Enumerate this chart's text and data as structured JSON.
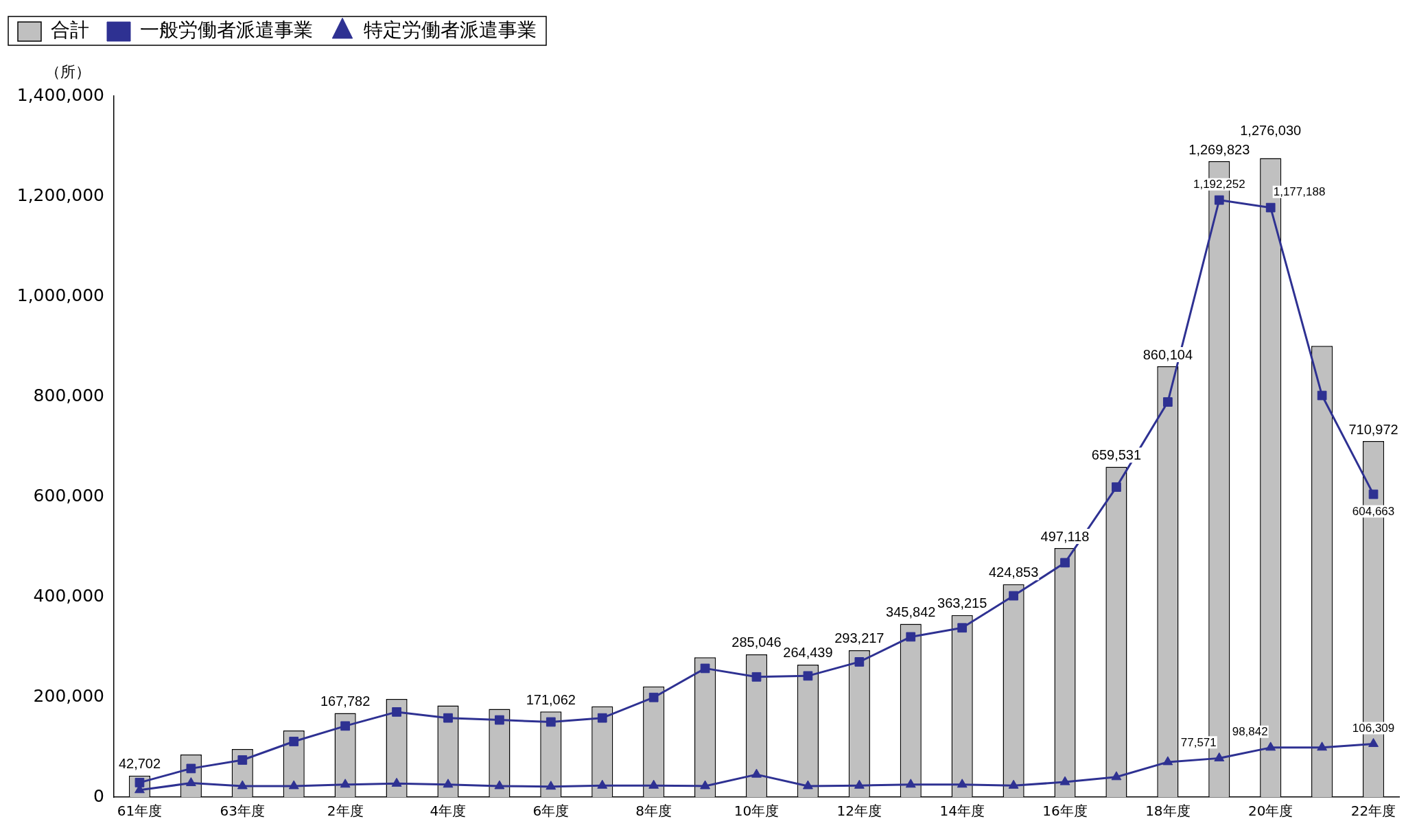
{
  "chart_data": {
    "type": "bar",
    "ylabel": "（所）",
    "legend": "top left",
    "grid": false,
    "categories": [
      "61年度",
      null,
      "63年度",
      null,
      "2年度",
      null,
      "4年度",
      null,
      "6年度",
      null,
      "8年度",
      null,
      "10年度",
      null,
      "12年度",
      null,
      "14年度",
      null,
      "16年度",
      null,
      "18年度",
      null,
      "20年度",
      null,
      "22年度"
    ],
    "ylim": [
      0,
      1400000
    ],
    "yticks": [
      {
        "value": 0,
        "label": "0"
      },
      {
        "value": 200000,
        "label": "200,000"
      },
      {
        "value": 400000,
        "label": "400,000"
      },
      {
        "value": 600000,
        "label": "600,000"
      },
      {
        "value": 800000,
        "label": "800,000"
      },
      {
        "value": 1000000,
        "label": "1,000,000"
      },
      {
        "value": 1200000,
        "label": "1,200,000"
      },
      {
        "value": 1400000,
        "label": "1,400,000"
      }
    ],
    "series": [
      {
        "name": "合計",
        "color": "#c0c0c0",
        "values": [
          42702,
          85000,
          96000,
          133000,
          167782,
          196000,
          183000,
          176000,
          171062,
          181000,
          221000,
          279000,
          285046,
          264439,
          293217,
          345842,
          363215,
          424853,
          497118,
          659531,
          860104,
          1269823,
          1276030,
          901000,
          710972
        ],
        "value_labels": [
          "42,702",
          null,
          null,
          null,
          "167,782",
          null,
          null,
          null,
          "171,062",
          null,
          null,
          null,
          "285,046",
          "264,439",
          "293,217",
          "345,842",
          "363,215",
          "424,853",
          "497,118",
          "659,531",
          "860,104",
          "1,269,823",
          "1,276,030",
          null,
          "710,972"
        ]
      },
      {
        "name": "一般労働者派遣事業",
        "type": "line",
        "marker": "square",
        "color": "#2e3192",
        "values": [
          29000,
          57000,
          74000,
          111000,
          142000,
          170000,
          158000,
          154000,
          150000,
          158000,
          199000,
          257000,
          240000,
          242000,
          270000,
          320000,
          338000,
          402000,
          468000,
          619000,
          789000,
          1192252,
          1177188,
          802000,
          604663
        ],
        "value_labels": [
          null,
          null,
          null,
          null,
          null,
          null,
          null,
          null,
          null,
          null,
          null,
          null,
          null,
          null,
          null,
          null,
          null,
          null,
          null,
          null,
          null,
          "1,192,252",
          "1,177,188",
          null,
          "604,663"
        ]
      },
      {
        "name": "特定労働者派遣事業",
        "type": "line",
        "marker": "triangle",
        "color": "#2e3192",
        "values": [
          14000,
          28000,
          22000,
          22000,
          25000,
          27000,
          25000,
          22000,
          21000,
          23000,
          23000,
          22000,
          45000,
          22000,
          23000,
          25000,
          25000,
          23000,
          30000,
          40000,
          70000,
          77571,
          98842,
          99000,
          106309
        ],
        "value_labels": [
          null,
          null,
          null,
          null,
          null,
          null,
          null,
          null,
          null,
          null,
          null,
          null,
          null,
          null,
          null,
          null,
          null,
          null,
          null,
          null,
          null,
          "77,571",
          "98,842",
          null,
          "106,309"
        ]
      }
    ]
  }
}
